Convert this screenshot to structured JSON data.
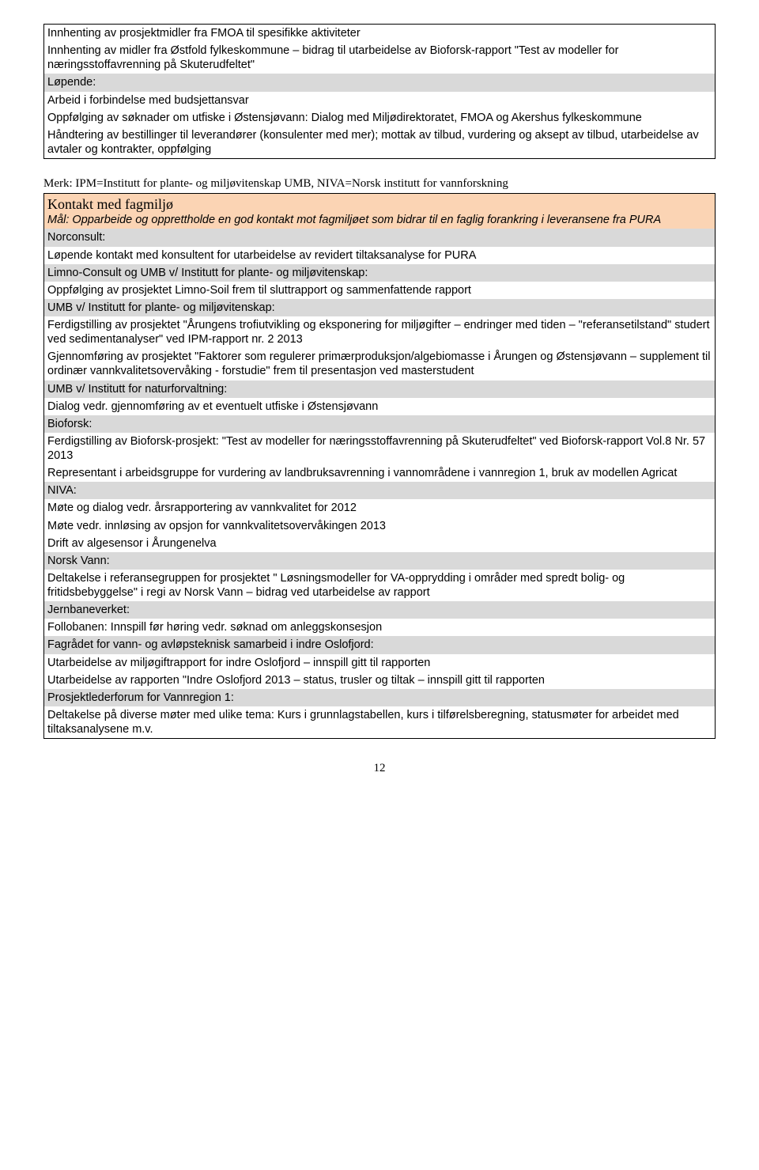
{
  "box1": {
    "r1": "Innhenting av prosjektmidler fra FMOA til spesifikke aktiviteter",
    "r2": "Innhenting av midler fra Østfold fylkeskommune – bidrag til utarbeidelse av Bioforsk-rapport \"Test av modeller for næringsstoffavrenning på Skuterudfeltet\"",
    "r3": "Løpende:",
    "r4": "Arbeid i forbindelse med budsjettansvar",
    "r5": "Oppfølging av søknader om utfiske i Østensjøvann: Dialog med Miljødirektoratet, FMOA og Akershus fylkeskommune",
    "r6": "Håndtering av bestillinger til leverandører (konsulenter med mer); mottak av tilbud, vurdering og aksept av tilbud, utarbeidelse av avtaler og kontrakter, oppfølging"
  },
  "note": "Merk: IPM=Institutt for plante- og miljøvitenskap UMB, NIVA=Norsk institutt for vannforskning",
  "box2": {
    "title": "Kontakt med fagmiljø",
    "goal": "Mål: Opparbeide og opprettholde en god kontakt mot fagmiljøet som bidrar til en faglig forankring i leveransene fra PURA",
    "r1": "Norconsult:",
    "r2": "Løpende kontakt med konsultent for utarbeidelse av revidert tiltaksanalyse for PURA",
    "r3": "Limno-Consult og UMB v/ Institutt for plante- og miljøvitenskap:",
    "r4": "Oppfølging av prosjektet Limno-Soil frem til sluttrapport og sammenfattende rapport",
    "r5": "UMB v/ Institutt for plante- og miljøvitenskap:",
    "r6": "Ferdigstilling av prosjektet \"Årungens trofiutvikling og eksponering for miljøgifter – endringer med tiden – \"referansetilstand\" studert ved sedimentanalyser\" ved IPM-rapport nr. 2 2013",
    "r7": "Gjennomføring av prosjektet \"Faktorer som regulerer primærproduksjon/algebiomasse i Årungen og Østensjøvann – supplement til ordinær vannkvalitetsovervåking - forstudie\" frem til presentasjon ved masterstudent",
    "r8": "UMB v/ Institutt for naturforvaltning:",
    "r9": "Dialog vedr. gjennomføring av et eventuelt utfiske i Østensjøvann",
    "r10": "Bioforsk:",
    "r11": "Ferdigstilling av Bioforsk-prosjekt: \"Test av modeller for næringsstoffavrenning på Skuterudfeltet\" ved Bioforsk-rapport Vol.8 Nr. 57 2013",
    "r12": "Representant i arbeidsgruppe for vurdering av landbruksavrenning i vannområdene i vannregion 1, bruk av modellen Agricat",
    "r13": "NIVA:",
    "r14": "Møte og dialog vedr. årsrapportering av vannkvalitet for 2012",
    "r15": "Møte vedr. innløsing av opsjon for vannkvalitetsovervåkingen 2013",
    "r16": "Drift av algesensor i Årungenelva",
    "r17": "Norsk Vann:",
    "r18": "Deltakelse i referansegruppen for prosjektet \" Løsningsmodeller for VA-opprydding i områder med spredt bolig- og fritidsbebyggelse\" i regi av Norsk Vann – bidrag ved utarbeidelse av rapport",
    "r19": "Jernbaneverket:",
    "r20": "Follobanen: Innspill før høring vedr.  søknad om anleggskonsesjon",
    "r21": "Fagrådet for vann- og avløpsteknisk samarbeid i indre Oslofjord:",
    "r22": "Utarbeidelse av miljøgiftrapport for indre Oslofjord – innspill gitt til rapporten",
    "r23": "Utarbeidelse av rapporten \"Indre Oslofjord 2013 – status, trusler og tiltak – innspill gitt til rapporten",
    "r24": "Prosjektlederforum for Vannregion 1:",
    "r25": "Deltakelse på diverse møter med ulike tema: Kurs i grunnlagstabellen, kurs i tilførelsberegning, statusmøter for arbeidet med tiltaksanalysene m.v."
  },
  "pageNum": "12"
}
